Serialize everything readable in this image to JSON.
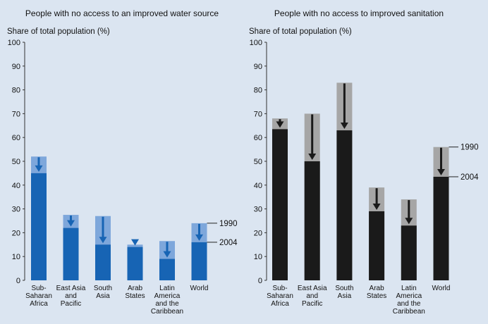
{
  "chart_data": [
    {
      "type": "bar",
      "title": "People with no access to an improved water source",
      "ylabel": "Share of total population (%)",
      "ylim": [
        0,
        100
      ],
      "yticks": [
        0,
        10,
        20,
        30,
        40,
        50,
        60,
        70,
        80,
        90,
        100
      ],
      "categories": [
        [
          "Sub-",
          "Saharan",
          "Africa"
        ],
        [
          "East Asia",
          "and",
          "Pacific"
        ],
        [
          "South",
          "Asia"
        ],
        [
          "Arab",
          "States"
        ],
        [
          "Latin",
          "America",
          "and the",
          "Caribbean"
        ],
        [
          "World"
        ]
      ],
      "series": [
        {
          "name": "1990",
          "values": [
            52,
            27.5,
            27,
            15,
            16.5,
            24
          ]
        },
        {
          "name": "2004",
          "values": [
            45,
            22,
            15,
            14,
            9,
            16
          ]
        }
      ],
      "colors": {
        "value_2004": "#1764b4",
        "value_1990": "#7ea7db",
        "arrow": "#1764b4"
      },
      "series_labels_shown_on": "World"
    },
    {
      "type": "bar",
      "title": "People with no access to improved sanitation",
      "ylabel": "Share of total population (%)",
      "ylim": [
        0,
        100
      ],
      "yticks": [
        0,
        10,
        20,
        30,
        40,
        50,
        60,
        70,
        80,
        90,
        100
      ],
      "categories": [
        [
          "Sub-",
          "Saharan",
          "Africa"
        ],
        [
          "East Asia",
          "and",
          "Pacific"
        ],
        [
          "South",
          "Asia"
        ],
        [
          "Arab",
          "States"
        ],
        [
          "Latin",
          "America",
          "and the",
          "Caribbean"
        ],
        [
          "World"
        ]
      ],
      "series": [
        {
          "name": "1990",
          "values": [
            68,
            70,
            83,
            39,
            34,
            56
          ]
        },
        {
          "name": "2004",
          "values": [
            63.5,
            50,
            63,
            29,
            23,
            43.5
          ]
        }
      ],
      "colors": {
        "value_2004": "#1a1a1a",
        "value_1990": "#a6a6a6",
        "arrow": "#1a1a1a"
      },
      "series_labels_shown_on": "World"
    }
  ]
}
